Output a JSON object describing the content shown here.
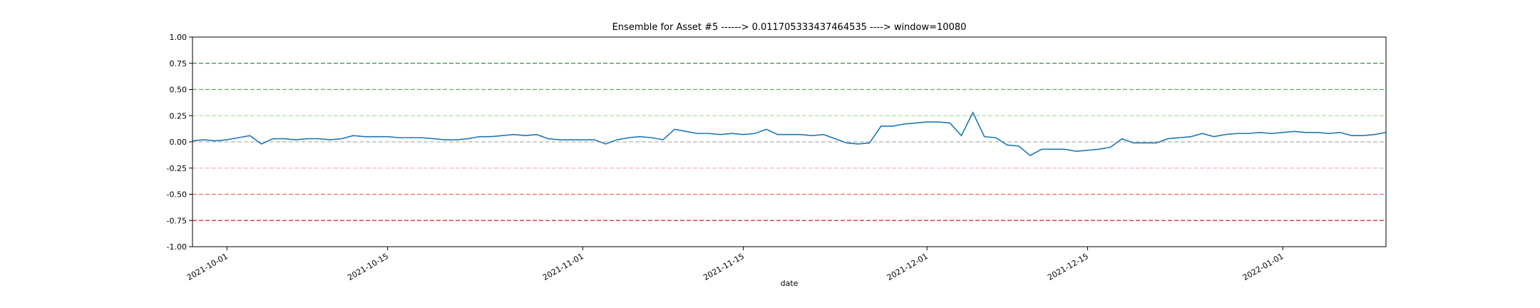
{
  "chart_data": {
    "type": "line",
    "title": "Ensemble for Asset #5 ------> 0.011705333437464535 ----> window=10080",
    "x_label": "date",
    "x": [
      "2021-09-28",
      "2021-09-29",
      "2021-09-30",
      "2021-10-01",
      "2021-10-02",
      "2021-10-03",
      "2021-10-04",
      "2021-10-05",
      "2021-10-06",
      "2021-10-07",
      "2021-10-08",
      "2021-10-09",
      "2021-10-10",
      "2021-10-11",
      "2021-10-12",
      "2021-10-13",
      "2021-10-14",
      "2021-10-15",
      "2021-10-16",
      "2021-10-17",
      "2021-10-18",
      "2021-10-19",
      "2021-10-20",
      "2021-10-21",
      "2021-10-22",
      "2021-10-23",
      "2021-10-24",
      "2021-10-25",
      "2021-10-26",
      "2021-10-27",
      "2021-10-28",
      "2021-10-29",
      "2021-10-30",
      "2021-10-31",
      "2021-11-01",
      "2021-11-02",
      "2021-11-03",
      "2021-11-04",
      "2021-11-05",
      "2021-11-06",
      "2021-11-07",
      "2021-11-08",
      "2021-11-09",
      "2021-11-10",
      "2021-11-11",
      "2021-11-12",
      "2021-11-13",
      "2021-11-14",
      "2021-11-15",
      "2021-11-16",
      "2021-11-17",
      "2021-11-18",
      "2021-11-19",
      "2021-11-20",
      "2021-11-21",
      "2021-11-22",
      "2021-11-23",
      "2021-11-24",
      "2021-11-25",
      "2021-11-26",
      "2021-11-27",
      "2021-11-28",
      "2021-11-29",
      "2021-11-30",
      "2021-12-01",
      "2021-12-02",
      "2021-12-03",
      "2021-12-04",
      "2021-12-05",
      "2021-12-06",
      "2021-12-07",
      "2021-12-08",
      "2021-12-09",
      "2021-12-10",
      "2021-12-11",
      "2021-12-12",
      "2021-12-13",
      "2021-12-14",
      "2021-12-15",
      "2021-12-16",
      "2021-12-17",
      "2021-12-18",
      "2021-12-19",
      "2021-12-20",
      "2021-12-21",
      "2021-12-22",
      "2021-12-23",
      "2021-12-24",
      "2021-12-25",
      "2021-12-26",
      "2021-12-27",
      "2021-12-28",
      "2021-12-29",
      "2021-12-30",
      "2021-12-31",
      "2022-01-01",
      "2022-01-02",
      "2022-01-03",
      "2022-01-04",
      "2022-01-05",
      "2022-01-06",
      "2022-01-07",
      "2022-01-08",
      "2022-01-09",
      "2022-01-10"
    ],
    "series": [
      {
        "color": "#1f77b4",
        "values": [
          0.01,
          0.02,
          0.01,
          0.02,
          0.04,
          0.06,
          -0.02,
          0.03,
          0.03,
          0.02,
          0.03,
          0.03,
          0.02,
          0.03,
          0.06,
          0.05,
          0.05,
          0.05,
          0.04,
          0.04,
          0.04,
          0.03,
          0.02,
          0.02,
          0.03,
          0.05,
          0.05,
          0.06,
          0.07,
          0.06,
          0.07,
          0.03,
          0.02,
          0.02,
          0.02,
          0.02,
          -0.02,
          0.02,
          0.04,
          0.05,
          0.04,
          0.02,
          0.12,
          0.1,
          0.08,
          0.08,
          0.07,
          0.08,
          0.07,
          0.08,
          0.12,
          0.07,
          0.07,
          0.07,
          0.06,
          0.07,
          0.03,
          -0.01,
          -0.02,
          -0.01,
          0.15,
          0.15,
          0.17,
          0.18,
          0.19,
          0.19,
          0.18,
          0.06,
          0.28,
          0.05,
          0.04,
          -0.03,
          -0.04,
          -0.13,
          -0.07,
          -0.07,
          -0.07,
          -0.09,
          -0.08,
          -0.07,
          -0.05,
          0.03,
          -0.01,
          -0.01,
          -0.01,
          0.03,
          0.04,
          0.05,
          0.08,
          0.05,
          0.07,
          0.08,
          0.08,
          0.09,
          0.08,
          0.09,
          0.1,
          0.09,
          0.09,
          0.08,
          0.09,
          0.06,
          0.06,
          0.07,
          0.09
        ]
      }
    ],
    "xlim": [
      "2021-09-28",
      "2022-01-10"
    ],
    "xticks": [
      "2021-10-01",
      "2021-10-15",
      "2021-11-01",
      "2021-11-15",
      "2021-12-01",
      "2021-12-15",
      "2022-01-01"
    ],
    "ylim": [
      -1,
      1
    ],
    "yticks": [
      {
        "value": -1,
        "label": "-1.00"
      },
      {
        "value": -0.75,
        "label": "-0.75"
      },
      {
        "value": -0.5,
        "label": "-0.50"
      },
      {
        "value": -0.25,
        "label": "-0.25"
      },
      {
        "value": 0,
        "label": "0.00"
      },
      {
        "value": 0.25,
        "label": "0.25"
      },
      {
        "value": 0.5,
        "label": "0.50"
      },
      {
        "value": 0.75,
        "label": "0.75"
      },
      {
        "value": 1,
        "label": "1.00"
      }
    ],
    "hlines": [
      {
        "value": 0.75,
        "color": "#3a8a3a"
      },
      {
        "value": 0.5,
        "color": "#6aa86a"
      },
      {
        "value": 0.25,
        "color": "#b5dca0"
      },
      {
        "value": 0,
        "color": "#b0b0b0"
      },
      {
        "value": -0.25,
        "color": "#f4b8b8"
      },
      {
        "value": -0.5,
        "color": "#e86a6a"
      },
      {
        "value": -0.75,
        "color": "#c82828"
      }
    ]
  }
}
